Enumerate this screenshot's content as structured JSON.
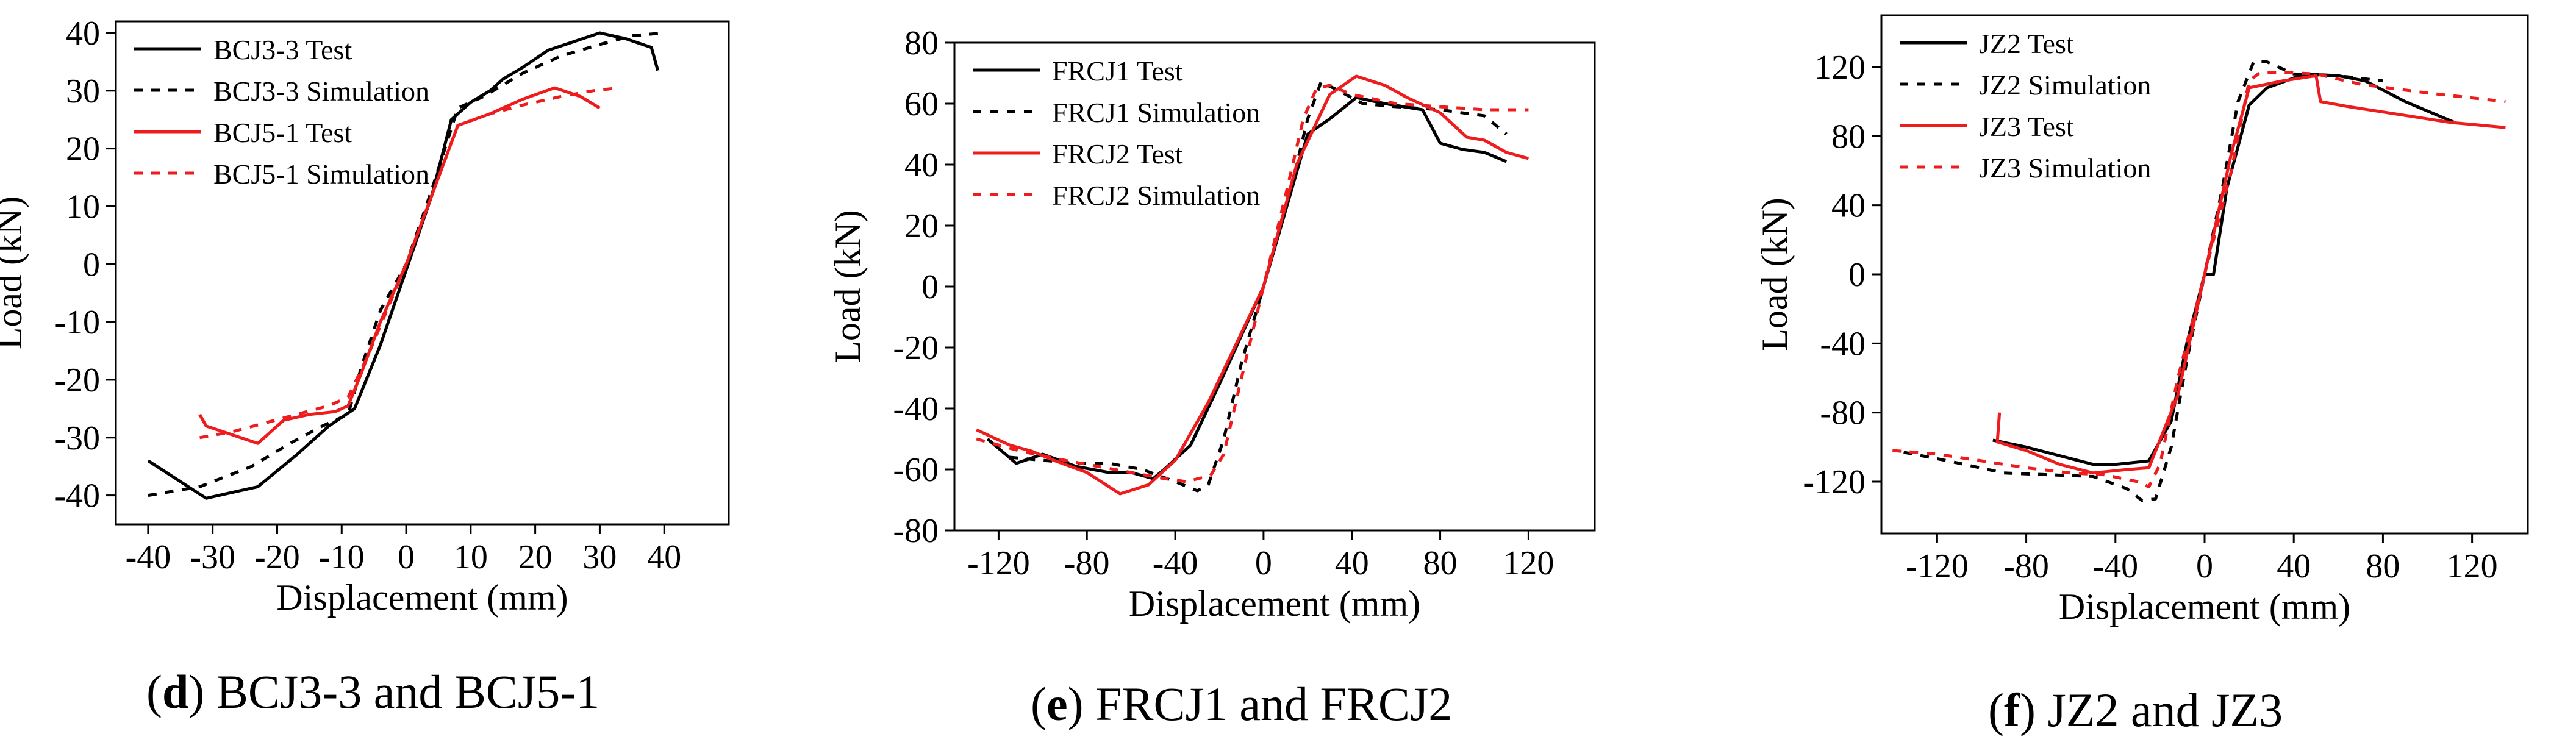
{
  "colors": {
    "test_black": "#000000",
    "test_red": "#ee1c1c",
    "axis": "#000000"
  },
  "chart_data": [
    {
      "type": "line",
      "panel": "d",
      "caption_letter": "d",
      "caption_text": "BCJ3-3 and BCJ5-1",
      "xlabel": "Displacement (mm)",
      "ylabel": "Load (kN)",
      "xlim": [
        -45,
        50
      ],
      "ylim": [
        -45,
        42
      ],
      "xticks": [
        -40,
        -30,
        -20,
        -10,
        0,
        10,
        20,
        30,
        40
      ],
      "yticks": [
        -40,
        -30,
        -20,
        -10,
        0,
        10,
        20,
        30,
        40
      ],
      "xtick_labels": [
        "-40",
        "-30",
        "-20",
        "-10",
        "0",
        "10",
        "20",
        "30",
        "40"
      ],
      "ytick_labels": [
        "-40",
        "-30",
        "-20",
        "-10",
        "0",
        "10",
        "20",
        "30",
        "40"
      ],
      "legend_position": "top-left",
      "series": [
        {
          "name": "BCJ3-3 Test",
          "color": "#000000",
          "dash": "solid",
          "x": [
            -40,
            -31,
            -23,
            -17,
            -12,
            -8,
            -4,
            0,
            4,
            7,
            10,
            13,
            15,
            18,
            22,
            26,
            30,
            34,
            38,
            39
          ],
          "y": [
            -34,
            -40.5,
            -38.5,
            -33,
            -28,
            -25,
            -14,
            -1,
            12,
            25,
            28,
            30,
            32,
            34,
            37,
            38.5,
            40,
            39,
            37.5,
            33.5
          ]
        },
        {
          "name": "BCJ3-3 Simulation",
          "color": "#000000",
          "dash": "dotted",
          "x": [
            -40,
            -32,
            -24,
            -18,
            -13,
            -9,
            -7,
            -4,
            0,
            4,
            8,
            12,
            18,
            24,
            30,
            35,
            40
          ],
          "y": [
            -40,
            -38.5,
            -35,
            -31,
            -28,
            -26,
            -18,
            -8,
            0,
            13,
            27,
            29,
            33,
            36,
            38,
            39.5,
            40
          ]
        },
        {
          "name": "BCJ5-1 Test",
          "color": "#ee1c1c",
          "dash": "solid",
          "x": [
            -32,
            -31,
            -23,
            -19,
            -15,
            -11,
            -9,
            -7,
            -4,
            0,
            4,
            8,
            13,
            18,
            23,
            27,
            30
          ],
          "y": [
            -26,
            -28,
            -31,
            -27,
            -26,
            -25.5,
            -24.5,
            -19,
            -10,
            0,
            12,
            24,
            26,
            28.5,
            30.5,
            29,
            27
          ]
        },
        {
          "name": "BCJ5-1 Simulation",
          "color": "#ee1c1c",
          "dash": "dotted",
          "x": [
            -32,
            -27,
            -22,
            -17,
            -12,
            -9,
            -6,
            -3,
            0,
            4,
            8,
            13,
            18,
            24,
            29,
            33
          ],
          "y": [
            -30,
            -29,
            -27.5,
            -26,
            -24.5,
            -23,
            -16,
            -8,
            0,
            12,
            24,
            26,
            27.5,
            29,
            30,
            30.5
          ]
        }
      ]
    },
    {
      "type": "line",
      "panel": "e",
      "caption_letter": "e",
      "caption_text": "FRCJ1 and FRCJ2",
      "xlabel": "Displacement (mm)",
      "ylabel": "Load (kN)",
      "xlim": [
        -140,
        150
      ],
      "ylim": [
        -80,
        80
      ],
      "xticks": [
        -120,
        -80,
        -40,
        0,
        40,
        80,
        120
      ],
      "yticks": [
        -80,
        -60,
        -40,
        -20,
        0,
        20,
        40,
        60,
        80
      ],
      "xtick_labels": [
        "-120",
        "-80",
        "-40",
        "0",
        "40",
        "80",
        "120"
      ],
      "ytick_labels": [
        "-80",
        "-60",
        "-40",
        "-20",
        "0",
        "20",
        "40",
        "60",
        "80"
      ],
      "legend_position": "top-left",
      "series": [
        {
          "name": "FRCJ1 Test",
          "color": "#000000",
          "dash": "solid",
          "x": [
            -125,
            -112,
            -100,
            -85,
            -70,
            -60,
            -50,
            -45,
            -33,
            -20,
            0,
            20,
            30,
            42,
            55,
            72,
            80,
            90,
            100,
            110
          ],
          "y": [
            -50,
            -58,
            -55,
            -59,
            -61,
            -61,
            -63,
            -60,
            -52,
            -32,
            0,
            50,
            55,
            62,
            60,
            58,
            47,
            45,
            44,
            41
          ]
        },
        {
          "name": "FRCJ1 Simulation",
          "color": "#000000",
          "dash": "dotted",
          "x": [
            -115,
            -100,
            -85,
            -70,
            -55,
            -40,
            -30,
            -25,
            -18,
            -10,
            0,
            10,
            20,
            26,
            32,
            45,
            60,
            80,
            100,
            110
          ],
          "y": [
            -56,
            -57,
            -58,
            -58,
            -60,
            -64,
            -67,
            -65,
            -50,
            -25,
            0,
            25,
            55,
            67,
            65,
            60,
            59,
            58,
            56,
            50
          ]
        },
        {
          "name": "FRCJ2 Test",
          "color": "#ee1c1c",
          "dash": "solid",
          "x": [
            -130,
            -115,
            -105,
            -95,
            -80,
            -65,
            -52,
            -40,
            -25,
            0,
            15,
            30,
            42,
            55,
            65,
            80,
            92,
            100,
            110,
            120
          ],
          "y": [
            -47,
            -52,
            -54,
            -57,
            -61,
            -68,
            -65,
            -57,
            -38,
            0,
            40,
            63,
            69,
            66,
            62,
            57,
            49,
            48,
            44,
            42
          ]
        },
        {
          "name": "FRCJ2 Simulation",
          "color": "#ee1c1c",
          "dash": "dotted",
          "x": [
            -130,
            -110,
            -90,
            -75,
            -60,
            -45,
            -35,
            -24,
            -18,
            -10,
            0,
            10,
            18,
            24,
            30,
            40,
            60,
            80,
            100,
            120
          ],
          "y": [
            -50,
            -54,
            -57,
            -59,
            -61,
            -63,
            -64,
            -62,
            -55,
            -30,
            0,
            30,
            55,
            65,
            66,
            63,
            60,
            59,
            58,
            58
          ]
        }
      ]
    },
    {
      "type": "line",
      "panel": "f",
      "caption_letter": "f",
      "caption_text": "JZ2 and JZ3",
      "xlabel": "Displacement (mm)",
      "ylabel": "Load (kN)",
      "xlim": [
        -145,
        145
      ],
      "ylim": [
        -150,
        150
      ],
      "xticks": [
        -120,
        -80,
        -40,
        0,
        40,
        80,
        120
      ],
      "yticks": [
        -120,
        -80,
        -40,
        0,
        40,
        80,
        120
      ],
      "xtick_labels": [
        "-120",
        "-80",
        "-40",
        "0",
        "40",
        "80",
        "120"
      ],
      "ytick_labels": [
        "-120",
        "-80",
        "-40",
        "0",
        "40",
        "80",
        "120"
      ],
      "legend_position": "top-left",
      "series": [
        {
          "name": "JZ2 Test",
          "color": "#000000",
          "dash": "solid",
          "x": [
            -95,
            -80,
            -65,
            -50,
            -40,
            -25,
            -15,
            -8,
            0,
            4,
            10,
            20,
            28,
            45,
            60,
            72,
            90,
            112
          ],
          "y": [
            -96,
            -100,
            -105,
            -110,
            -110,
            -108,
            -85,
            -40,
            0,
            0,
            50,
            98,
            108,
            116,
            115,
            112,
            100,
            88
          ]
        },
        {
          "name": "JZ2 Simulation",
          "color": "#000000",
          "dash": "dotted",
          "x": [
            -135,
            -115,
            -90,
            -70,
            -50,
            -35,
            -28,
            -22,
            -15,
            -8,
            0,
            8,
            15,
            22,
            28,
            40,
            60,
            80
          ],
          "y": [
            -103,
            -108,
            -115,
            -116,
            -117,
            -124,
            -131,
            -130,
            -100,
            -50,
            0,
            50,
            100,
            123,
            123,
            116,
            115,
            112
          ]
        },
        {
          "name": "JZ3 Test",
          "color": "#ee1c1c",
          "dash": "solid",
          "x": [
            -92,
            -93,
            -80,
            -65,
            -50,
            -35,
            -25,
            -12,
            0,
            12,
            20,
            35,
            50,
            52,
            65,
            90,
            110,
            135
          ],
          "y": [
            -80,
            -97,
            -102,
            -110,
            -115,
            -113,
            -112,
            -70,
            0,
            70,
            108,
            112,
            115,
            100,
            97,
            92,
            88,
            85
          ]
        },
        {
          "name": "JZ3 Simulation",
          "color": "#ee1c1c",
          "dash": "dotted",
          "x": [
            -140,
            -120,
            -100,
            -80,
            -60,
            -45,
            -30,
            -25,
            -20,
            -12,
            0,
            12,
            20,
            25,
            35,
            50,
            70,
            100,
            135
          ],
          "y": [
            -102,
            -104,
            -108,
            -112,
            -115,
            -116,
            -120,
            -123,
            -110,
            -60,
            0,
            60,
            112,
            117,
            117,
            116,
            110,
            105,
            100
          ]
        }
      ]
    }
  ]
}
